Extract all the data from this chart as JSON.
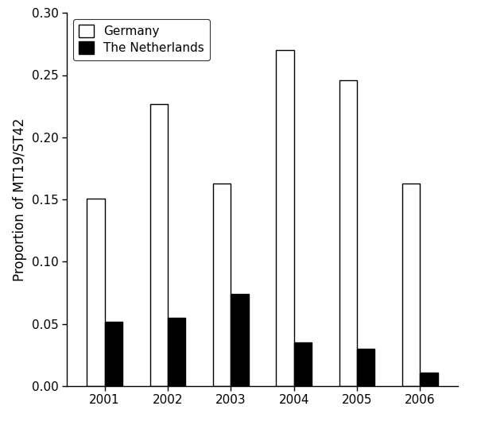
{
  "years": [
    "2001",
    "2002",
    "2003",
    "2004",
    "2005",
    "2006"
  ],
  "germany_values": [
    0.151,
    0.227,
    0.163,
    0.27,
    0.246,
    0.163
  ],
  "netherlands_values": [
    0.052,
    0.055,
    0.074,
    0.035,
    0.03,
    0.011
  ],
  "germany_color": "#ffffff",
  "germany_edgecolor": "#000000",
  "netherlands_color": "#000000",
  "netherlands_edgecolor": "#000000",
  "title": "",
  "ylabel": "Proportion of MT19/ST42",
  "xlabel": "",
  "ylim": [
    0.0,
    0.3
  ],
  "yticks": [
    0.0,
    0.05,
    0.1,
    0.15,
    0.2,
    0.25,
    0.3
  ],
  "legend_labels": [
    "Germany",
    "The Netherlands"
  ],
  "bar_width": 0.28,
  "bar_gap": 0.0,
  "figsize": [
    6.0,
    5.4
  ],
  "dpi": 100,
  "linewidth": 1.0,
  "tick_fontsize": 11,
  "ylabel_fontsize": 12,
  "legend_fontsize": 11
}
